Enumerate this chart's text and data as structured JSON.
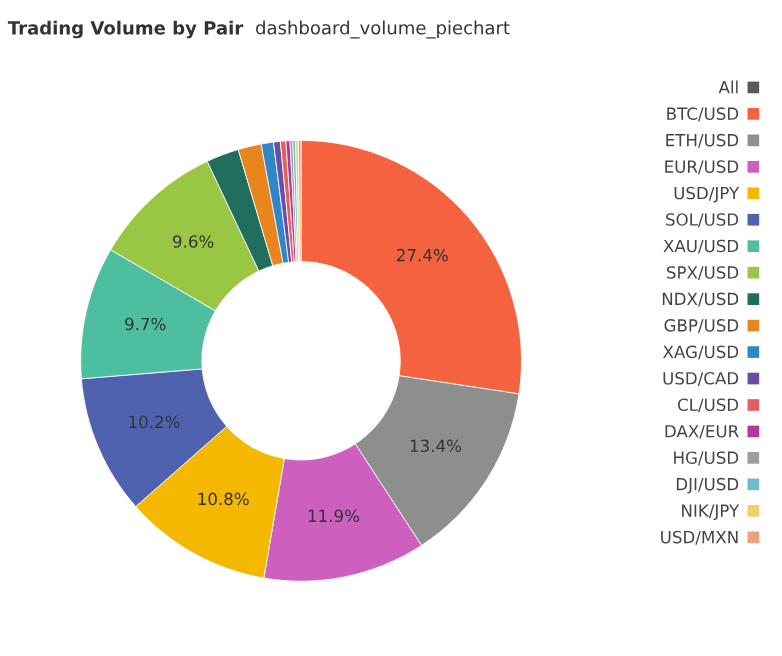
{
  "chart_data": {
    "type": "donut",
    "title": "Trading Volume by Pair",
    "subtitle": "dashboard_volume_piechart",
    "categories": [
      "All",
      "BTC/USD",
      "ETH/USD",
      "EUR/USD",
      "USD/JPY",
      "SOL/USD",
      "XAU/USD",
      "SPX/USD",
      "NDX/USD",
      "GBP/USD",
      "XAG/USD",
      "USD/CAD",
      "CL/USD",
      "DAX/EUR",
      "HG/USD",
      "DJI/USD",
      "NIK/JPY",
      "USD/MXN"
    ],
    "values": [
      0,
      27.4,
      13.4,
      11.9,
      10.8,
      10.2,
      9.7,
      9.6,
      2.4,
      1.7,
      0.9,
      0.5,
      0.4,
      0.3,
      0.2,
      0.2,
      0.2,
      0.2
    ],
    "value_labels": [
      null,
      "27.4%",
      "13.4%",
      "11.9%",
      "10.8%",
      "10.2%",
      "9.7%",
      "9.6%",
      null,
      null,
      null,
      null,
      null,
      null,
      null,
      null,
      null,
      null
    ],
    "colors": [
      "#555a60",
      "#f4623f",
      "#8c8f8c",
      "#cd5fbf",
      "#f5b800",
      "#4f62b0",
      "#4dbfa0",
      "#99c744",
      "#1f6e5e",
      "#e8851d",
      "#2f87c8",
      "#6a4ea5",
      "#e2605f",
      "#b0399a",
      "#a09e98",
      "#6cbccb",
      "#f2cd6c",
      "#eda07e"
    ],
    "legend": "right"
  }
}
